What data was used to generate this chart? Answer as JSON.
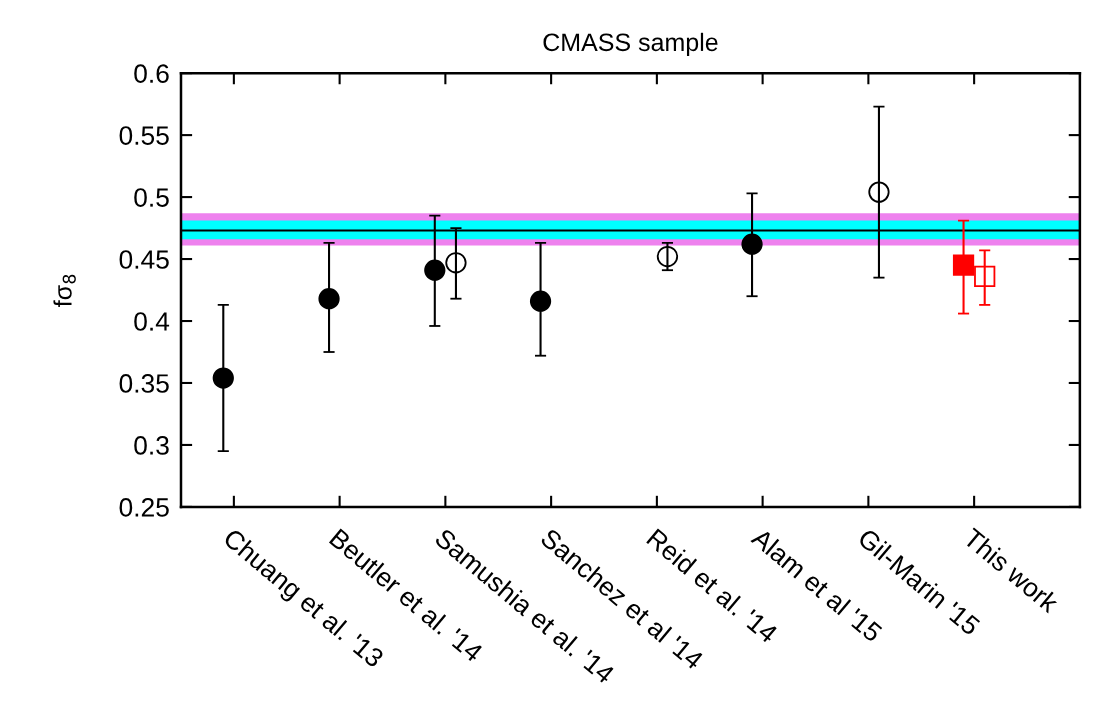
{
  "chart_data": {
    "type": "scatter",
    "title": "CMASS sample",
    "ylabel": "fσ$_{8}$",
    "categories": [
      "Chuang et al. '13",
      "Beutler et al. '14",
      "Samushia et al. '14",
      "Sanchez et al '14",
      "Reid et al. '14",
      "Alam et al '15",
      "Gil-Marin '15",
      "This work"
    ],
    "series": [
      {
        "color": "#000000",
        "marker": "circle",
        "values": [
          0.354,
          0.418,
          0.441,
          0.416,
          null,
          0.462,
          null,
          null
        ],
        "errors": [
          [
            0.295,
            0.413
          ],
          [
            0.375,
            0.463
          ],
          [
            0.396,
            0.485
          ],
          [
            0.372,
            0.463
          ],
          null,
          [
            0.42,
            0.503
          ],
          null,
          null
        ]
      },
      {
        "color": "#000000",
        "marker": "circle",
        "values": [
          null,
          null,
          0.447,
          null,
          0.452,
          null,
          0.504,
          null
        ],
        "errors": [
          null,
          null,
          [
            0.418,
            0.475
          ],
          null,
          [
            0.441,
            0.463
          ],
          null,
          [
            0.435,
            0.573
          ],
          null
        ]
      },
      {
        "color": "#ff0000",
        "marker": "square",
        "values": [
          null,
          null,
          null,
          null,
          null,
          null,
          null,
          0.445
        ],
        "errors": [
          null,
          null,
          null,
          null,
          null,
          null,
          null,
          [
            0.406,
            0.481
          ]
        ]
      },
      {
        "color": "#ff0000",
        "marker": "square",
        "values": [
          null,
          null,
          null,
          null,
          null,
          null,
          null,
          0.436
        ],
        "errors": [
          null,
          null,
          null,
          null,
          null,
          null,
          null,
          [
            0.413,
            0.457
          ]
        ]
      }
    ],
    "bands": [
      {
        "axis": "y",
        "from": 0.461,
        "to": 0.487,
        "color": "#ee82ee"
      },
      {
        "axis": "y",
        "from": 0.466,
        "to": 0.481,
        "color": "#00ffff"
      }
    ],
    "ref_lines": [
      {
        "axis": "y",
        "value": 0.473,
        "color": "#000000",
        "line_style": "solid"
      }
    ],
    "ylim": [
      0.25,
      0.6
    ],
    "yticks": [
      0.25,
      0.3,
      0.35,
      0.4,
      0.45,
      0.5,
      0.55,
      0.6
    ],
    "grid": false,
    "legend": false
  }
}
